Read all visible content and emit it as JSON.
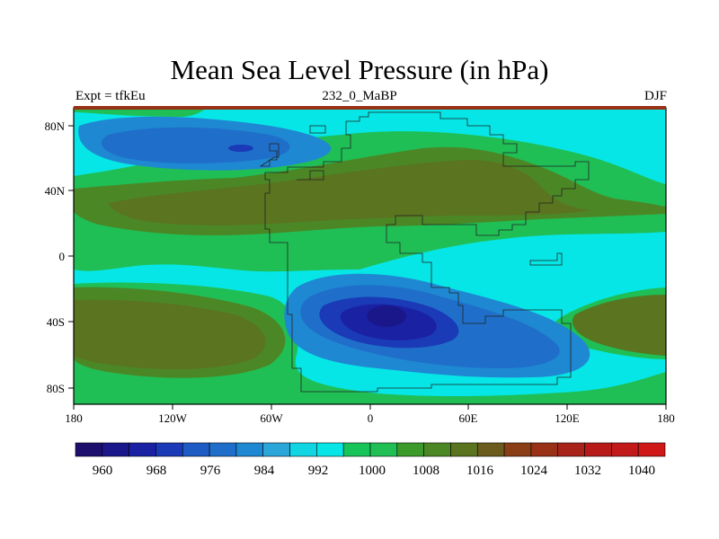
{
  "title": "Mean Sea Level Pressure (in hPa)",
  "left_label": "Expt = tfkEu",
  "center_label": "232_0_MaBP",
  "right_label": "DJF",
  "x_ticks": [
    "180",
    "120W",
    "60W",
    "0",
    "60E",
    "120E",
    "180"
  ],
  "y_ticks": [
    "80N",
    "40N",
    "0",
    "40S",
    "80S"
  ],
  "colorbar": {
    "colors": [
      "#1c0f6e",
      "#1a178a",
      "#1a22a3",
      "#1a3ab8",
      "#1f5bc4",
      "#1f6fca",
      "#1f88d2",
      "#2aa6d9",
      "#11d5e3",
      "#06e6e6",
      "#17c45a",
      "#1fbf55",
      "#3b9a2a",
      "#4c8726",
      "#5a7420",
      "#6b5c1d",
      "#8a3e15",
      "#983116",
      "#a8241a",
      "#b81a19",
      "#c21a1a",
      "#d01818"
    ],
    "labels": [
      "960",
      "968",
      "976",
      "984",
      "992",
      "1000",
      "1008",
      "1016",
      "1024",
      "1032",
      "1040"
    ]
  }
}
